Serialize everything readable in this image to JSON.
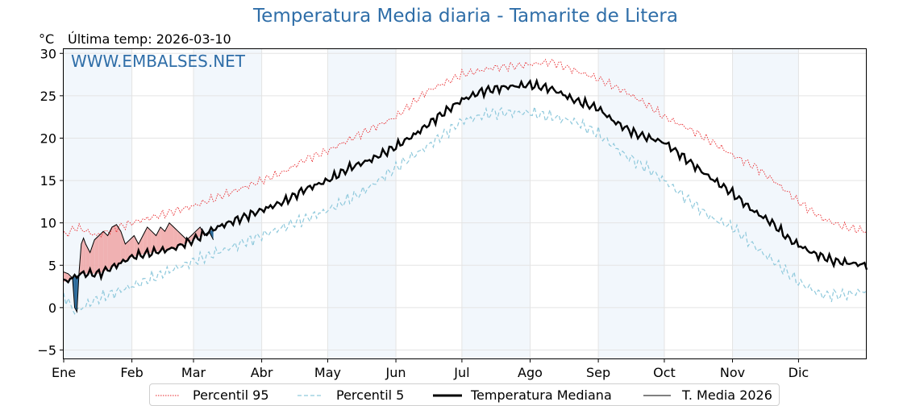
{
  "header": {
    "title": "Temperatura Media diaria - Tamarite de Litera",
    "units": "°C",
    "last_temp": "Última temp: 2026-03-10",
    "watermark": "WWW.EMBALSES.NET"
  },
  "colors": {
    "title": "#2f6ea8",
    "p95": "#e8262a",
    "p5": "#8fc9dc",
    "median": "#000000",
    "current": "#000000",
    "above_fill": "#f0a4a4",
    "below_fill": "#2b6a9a",
    "band": "#f2f7fc"
  },
  "legend": {
    "p95": "Percentil 95",
    "p5": "Percentil 5",
    "median": "Temperatura Mediana",
    "current": "T. Media 2026"
  },
  "chart_data": {
    "type": "line",
    "title": "Temperatura Media diaria - Tamarite de Litera",
    "ylabel": "°C",
    "ylim": [
      -6,
      30.5
    ],
    "xlim": [
      0,
      365
    ],
    "yticks": [
      -5,
      0,
      5,
      10,
      15,
      20,
      25,
      30
    ],
    "month_labels": [
      "Ene",
      "Feb",
      "Mar",
      "Abr",
      "May",
      "Jun",
      "Jul",
      "Ago",
      "Sep",
      "Oct",
      "Nov",
      "Dic"
    ],
    "month_starts": [
      0,
      31,
      59,
      90,
      120,
      151,
      181,
      212,
      243,
      273,
      304,
      334
    ],
    "grid": true,
    "legend_position": "bottom",
    "series": [
      {
        "name": "Percentil 95",
        "key": "p95",
        "style": "dotted",
        "points": [
          [
            0,
            8.5
          ],
          [
            6,
            9.5
          ],
          [
            15,
            8.5
          ],
          [
            25,
            9.5
          ],
          [
            31,
            10.0
          ],
          [
            45,
            11.0
          ],
          [
            59,
            12.0
          ],
          [
            75,
            13.5
          ],
          [
            90,
            15.0
          ],
          [
            100,
            16.0
          ],
          [
            110,
            17.5
          ],
          [
            120,
            18.5
          ],
          [
            135,
            20.5
          ],
          [
            151,
            22.5
          ],
          [
            165,
            25.5
          ],
          [
            181,
            27.5
          ],
          [
            195,
            28.3
          ],
          [
            205,
            28.5
          ],
          [
            212,
            28.7
          ],
          [
            222,
            29.0
          ],
          [
            232,
            28.0
          ],
          [
            243,
            27.0
          ],
          [
            255,
            25.5
          ],
          [
            265,
            24.0
          ],
          [
            273,
            22.5
          ],
          [
            285,
            21.0
          ],
          [
            295,
            19.5
          ],
          [
            304,
            18.0
          ],
          [
            315,
            16.5
          ],
          [
            325,
            14.5
          ],
          [
            334,
            12.5
          ],
          [
            345,
            10.5
          ],
          [
            355,
            9.5
          ],
          [
            365,
            9.0
          ]
        ]
      },
      {
        "name": "Percentil 5",
        "key": "p5",
        "style": "dashed",
        "points": [
          [
            0,
            1.5
          ],
          [
            5,
            -0.5
          ],
          [
            15,
            1.0
          ],
          [
            31,
            2.5
          ],
          [
            45,
            4.0
          ],
          [
            59,
            5.5
          ],
          [
            75,
            7.0
          ],
          [
            90,
            8.5
          ],
          [
            100,
            9.5
          ],
          [
            110,
            10.5
          ],
          [
            120,
            11.5
          ],
          [
            135,
            13.5
          ],
          [
            151,
            16.5
          ],
          [
            165,
            19.0
          ],
          [
            181,
            22.0
          ],
          [
            195,
            23.0
          ],
          [
            212,
            23.0
          ],
          [
            222,
            22.5
          ],
          [
            232,
            22.0
          ],
          [
            243,
            20.5
          ],
          [
            255,
            18.0
          ],
          [
            265,
            16.5
          ],
          [
            273,
            15.0
          ],
          [
            285,
            12.5
          ],
          [
            295,
            10.5
          ],
          [
            304,
            9.5
          ],
          [
            315,
            7.0
          ],
          [
            325,
            5.0
          ],
          [
            334,
            3.0
          ],
          [
            345,
            1.5
          ],
          [
            355,
            1.5
          ],
          [
            365,
            2.0
          ]
        ]
      },
      {
        "name": "Temperatura Mediana",
        "key": "median",
        "style": "bold",
        "points": [
          [
            0,
            3.0
          ],
          [
            8,
            4.0
          ],
          [
            16,
            4.0
          ],
          [
            24,
            5.0
          ],
          [
            31,
            6.0
          ],
          [
            40,
            6.5
          ],
          [
            50,
            7.0
          ],
          [
            59,
            8.0
          ],
          [
            70,
            9.5
          ],
          [
            80,
            10.5
          ],
          [
            90,
            11.5
          ],
          [
            100,
            12.5
          ],
          [
            110,
            14.0
          ],
          [
            120,
            15.0
          ],
          [
            130,
            16.5
          ],
          [
            140,
            17.5
          ],
          [
            151,
            19.0
          ],
          [
            160,
            20.5
          ],
          [
            170,
            22.5
          ],
          [
            181,
            24.5
          ],
          [
            190,
            25.5
          ],
          [
            200,
            26.0
          ],
          [
            212,
            26.3
          ],
          [
            222,
            25.8
          ],
          [
            232,
            24.5
          ],
          [
            243,
            23.5
          ],
          [
            250,
            22.0
          ],
          [
            260,
            20.5
          ],
          [
            273,
            19.5
          ],
          [
            283,
            17.5
          ],
          [
            293,
            15.5
          ],
          [
            304,
            13.5
          ],
          [
            313,
            11.5
          ],
          [
            322,
            10.0
          ],
          [
            330,
            8.0
          ],
          [
            340,
            6.5
          ],
          [
            350,
            5.5
          ],
          [
            365,
            5.0
          ]
        ]
      },
      {
        "name": "T. Media 2026",
        "key": "current",
        "style": "thin",
        "points": [
          [
            0,
            4.2
          ],
          [
            2,
            4.0
          ],
          [
            4,
            3.5
          ],
          [
            5,
            0.0
          ],
          [
            6,
            -0.5
          ],
          [
            7,
            4.2
          ],
          [
            8,
            7.5
          ],
          [
            9,
            8.2
          ],
          [
            10,
            7.5
          ],
          [
            12,
            6.5
          ],
          [
            14,
            8.0
          ],
          [
            16,
            8.5
          ],
          [
            18,
            9.0
          ],
          [
            20,
            8.5
          ],
          [
            22,
            9.5
          ],
          [
            24,
            9.8
          ],
          [
            26,
            9.0
          ],
          [
            28,
            7.5
          ],
          [
            30,
            8.0
          ],
          [
            32,
            8.5
          ],
          [
            34,
            7.5
          ],
          [
            36,
            8.5
          ],
          [
            38,
            9.5
          ],
          [
            40,
            9.0
          ],
          [
            42,
            8.5
          ],
          [
            44,
            9.5
          ],
          [
            46,
            9.0
          ],
          [
            48,
            10.0
          ],
          [
            50,
            9.5
          ],
          [
            52,
            9.0
          ],
          [
            54,
            8.5
          ],
          [
            56,
            8.0
          ],
          [
            58,
            8.5
          ],
          [
            60,
            9.0
          ],
          [
            62,
            9.5
          ],
          [
            64,
            8.5
          ],
          [
            66,
            9.0
          ],
          [
            68,
            8.0
          ]
        ]
      }
    ]
  }
}
